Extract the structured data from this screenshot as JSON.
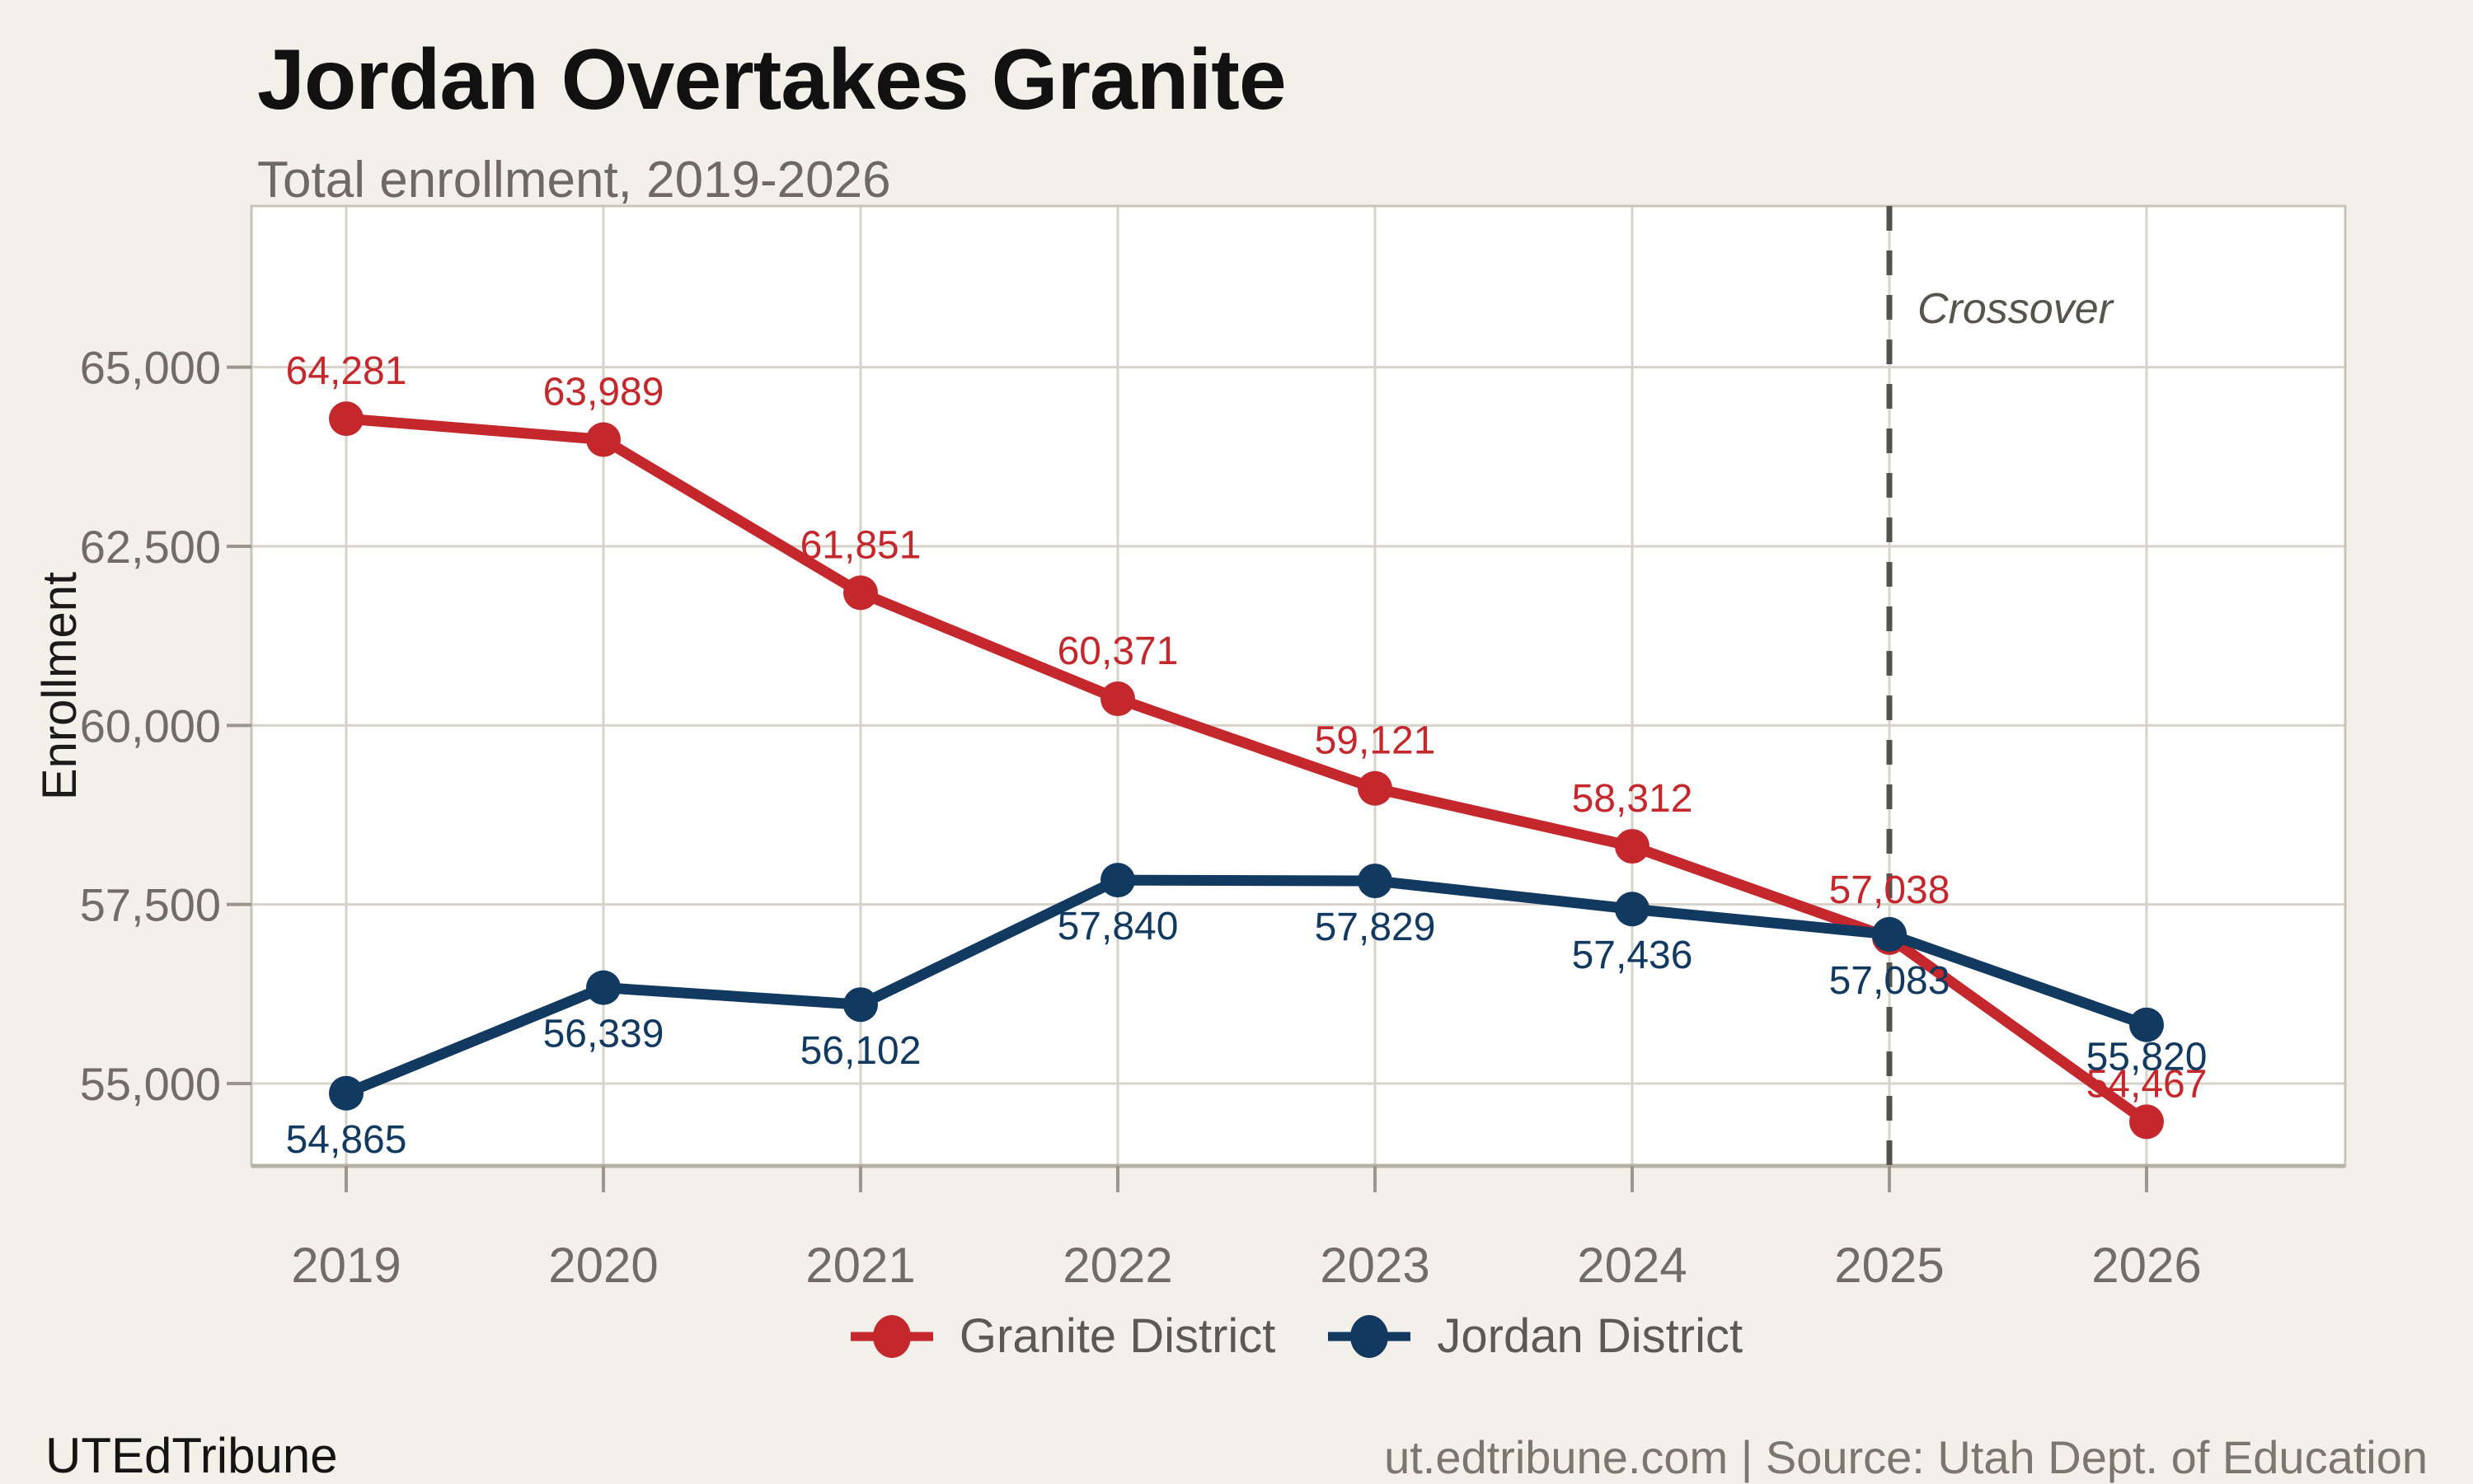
{
  "page": {
    "background": "#f3f0ea",
    "title": "Jordan Overtakes Granite",
    "subtitle": "Total enrollment, 2019-2026",
    "footer_left": "UTEdTribune",
    "footer_right": "ut.edtribune.com | Source: Utah Dept. of Education"
  },
  "chart_data": {
    "type": "line",
    "title": "Jordan Overtakes Granite",
    "subtitle": "Total enrollment, 2019-2026",
    "xlabel": "",
    "ylabel": "Enrollment",
    "categories": [
      "2019",
      "2020",
      "2021",
      "2022",
      "2023",
      "2024",
      "2025",
      "2026"
    ],
    "series": [
      {
        "name": "Granite District",
        "color": "#c4282c",
        "values": [
          64281,
          63989,
          61851,
          60371,
          59121,
          58312,
          57038,
          54467
        ],
        "label_position": "above"
      },
      {
        "name": "Jordan District",
        "color": "#12395f",
        "values": [
          54865,
          56339,
          56102,
          57840,
          57829,
          57436,
          57083,
          55820
        ],
        "label_position": "below"
      }
    ],
    "yticks": [
      55000,
      57500,
      60000,
      62500,
      65000
    ],
    "ylim": [
      53850,
      67250
    ],
    "grid": true,
    "legend_position": "bottom",
    "annotation": {
      "label": "Crossover",
      "category": "2025"
    },
    "colors": {
      "plot_background": "#ffffff",
      "gridline": "#d7d3ca",
      "frame": "#c8c3b9",
      "axis_bottom": "#b6b0a5",
      "tick": "#9b968d",
      "tick_label": "#716d66",
      "axis_title": "#1a1a1a",
      "annotation_line": "#55534d",
      "annotation_text": "#57544e"
    }
  }
}
